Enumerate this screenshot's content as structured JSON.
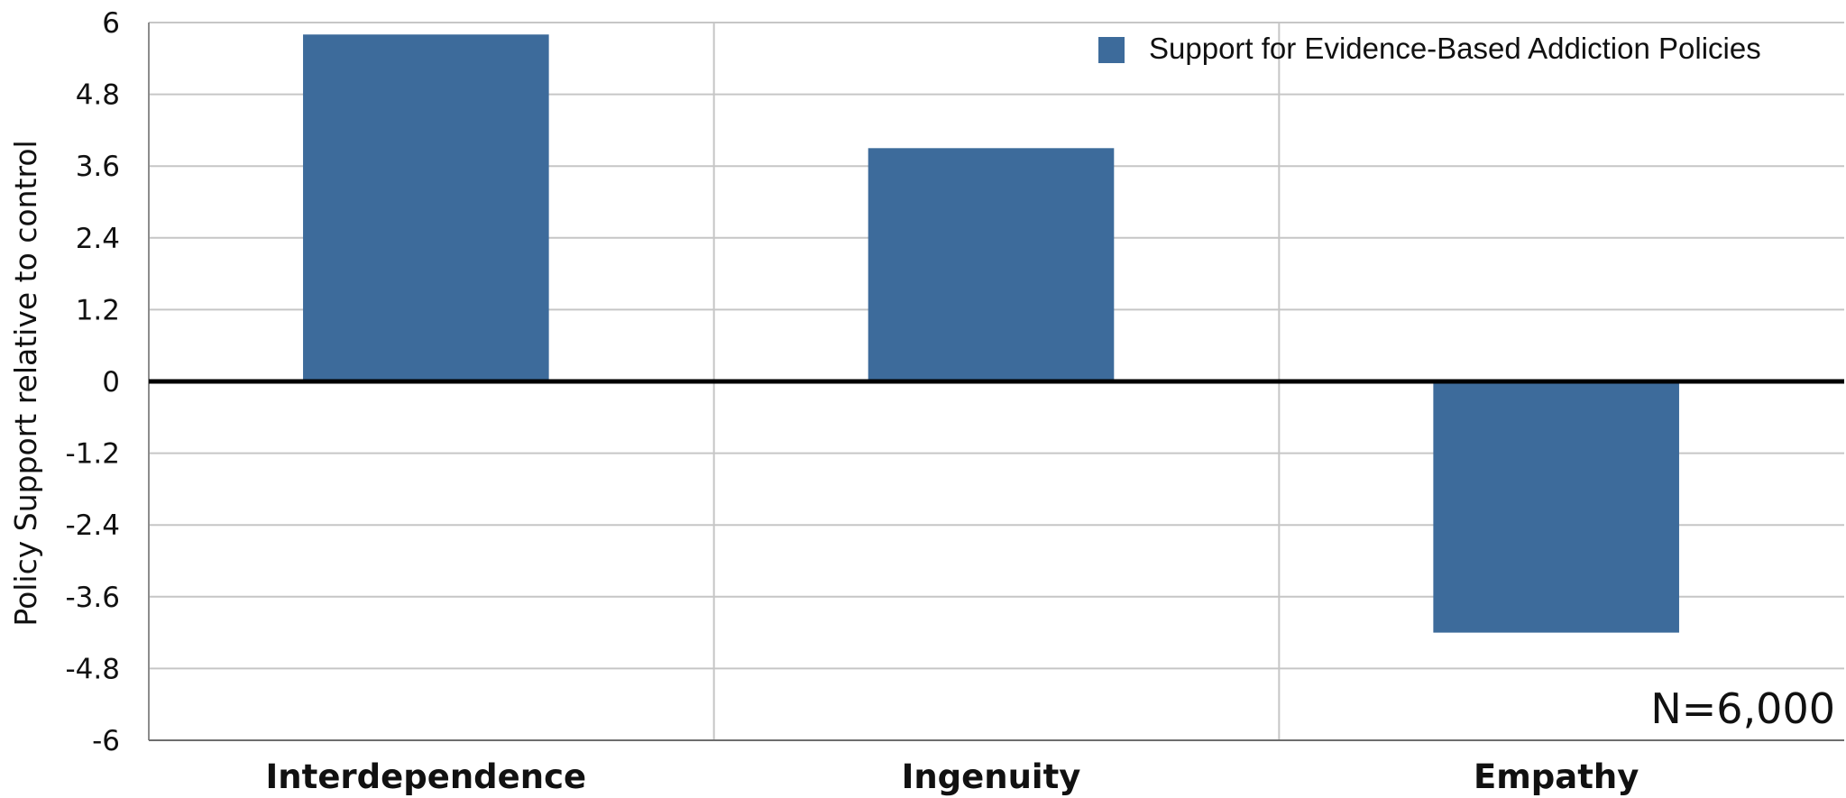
{
  "chart_data": {
    "type": "bar",
    "categories": [
      "Interdependence",
      "Ingenuity",
      "Empathy"
    ],
    "series": [
      {
        "name": "Support for Evidence-Based Addiction Policies",
        "values": [
          5.8,
          3.9,
          -4.2
        ],
        "color": "#3d6b9b"
      }
    ],
    "ylabel": "Policy Support relative to control",
    "xlabel": "",
    "ylim": [
      -6,
      6
    ],
    "yticks": [
      6,
      4.8,
      3.6,
      2.4,
      1.2,
      0,
      -1.2,
      -2.4,
      -3.6,
      -4.8,
      -6
    ],
    "ytick_labels": [
      "6",
      "4.8",
      "3.6",
      "2.4",
      "1.2",
      "0",
      "-1.2",
      "-2.4",
      "-3.6",
      "-4.8",
      "-6"
    ],
    "grid": true,
    "legend_position": "top-right",
    "annotation": "N=6,000"
  }
}
